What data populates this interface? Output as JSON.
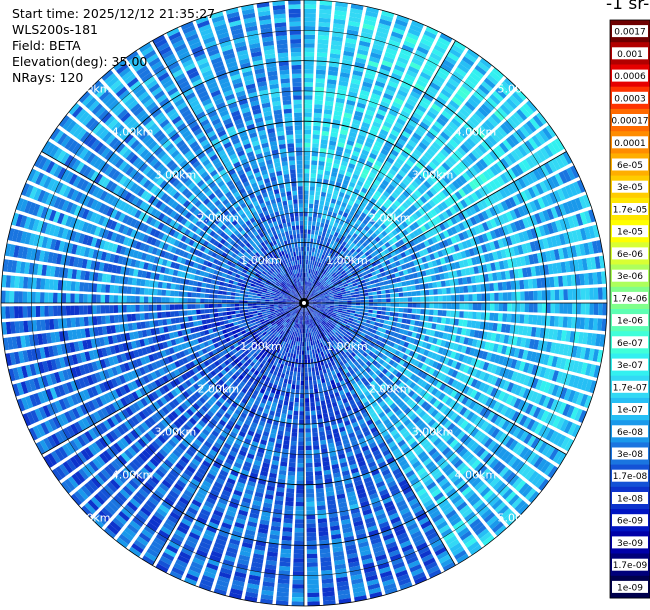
{
  "info": {
    "start_time": "Start time: 2025/12/12 21:35:27",
    "instrument": "WLS200s-181",
    "field": "Field: BETA",
    "elevation": "Elevation(deg): 35.00",
    "nrays": "NRays: 120"
  },
  "colorbar": {
    "title_fragment": "-1 sr-",
    "labels": [
      "0.0017",
      "0.001",
      "0.0006",
      "0.0003",
      "0.00017",
      "0.0001",
      "6e-05",
      "3e-05",
      "1.7e-05",
      "1e-05",
      "6e-06",
      "3e-06",
      "1.7e-06",
      "1e-06",
      "6e-07",
      "3e-07",
      "1.7e-07",
      "1e-07",
      "6e-08",
      "3e-08",
      "1.7e-08",
      "1e-08",
      "6e-09",
      "3e-09",
      "1.7e-09",
      "1e-09"
    ],
    "colors": [
      "#6e0000",
      "#b20000",
      "#e60000",
      "#ff3300",
      "#ff6a00",
      "#ff8c00",
      "#ffae00",
      "#ffcc00",
      "#ffe600",
      "#ffff00",
      "#d9ff33",
      "#adff5c",
      "#80ff8a",
      "#5cffb3",
      "#40ffd9",
      "#33f0f0",
      "#33d9f5",
      "#26bff5",
      "#1a99eb",
      "#1a75e0",
      "#1452d6",
      "#0d33cc",
      "#0014c2",
      "#0000a8",
      "#00007a",
      "#00004d"
    ]
  },
  "chart_data": {
    "type": "polar-ppi",
    "field": "BETA",
    "elevation_deg": 35.0,
    "nrays": 120,
    "range_rings_km": [
      1.0,
      2.0,
      3.0,
      4.0,
      5.0
    ],
    "ring_label_suffix": "km",
    "ring_labels": [
      "1.00km",
      "2.00km",
      "3.00km",
      "4.00km",
      "5.00km"
    ],
    "max_range_km": 5.0,
    "azimuth_lines_deg": [
      0,
      30,
      60,
      90,
      120,
      150,
      180,
      210,
      240,
      270,
      300,
      330
    ],
    "color_scale": "log",
    "value_range": [
      1e-09,
      0.0017
    ],
    "dominant_values_by_sector": [
      {
        "azimuth_range_deg": [
          0,
          60
        ],
        "typical_value": 1.7e-07
      },
      {
        "azimuth_range_deg": [
          60,
          150
        ],
        "typical_value": 1e-07
      },
      {
        "azimuth_range_deg": [
          150,
          270
        ],
        "typical_value": 3e-08
      },
      {
        "azimuth_range_deg": [
          270,
          360
        ],
        "typical_value": 6e-08
      }
    ],
    "near_range_typical_value": 1e-08
  }
}
